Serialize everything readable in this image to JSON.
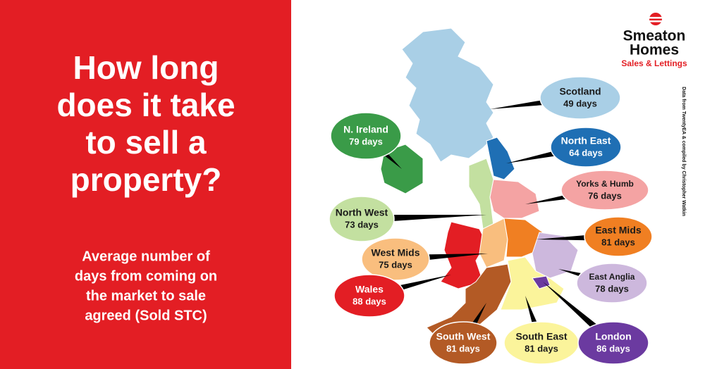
{
  "title_lines": [
    "How long",
    "does it take",
    "to sell a",
    "property?"
  ],
  "subtitle_lines": [
    "Average number of",
    "days from coming on",
    "the market to sale",
    "agreed (Sold STC)"
  ],
  "logo": {
    "name_lines": [
      "Smeaton",
      "Homes"
    ],
    "tagline": "Sales & Lettings"
  },
  "source": "Data from TwentyEA & compiled by Christopher Watkin",
  "regions": [
    {
      "name": "Scotland",
      "days": "49 days",
      "color": "#a9cfe6",
      "text_color": "#1a1a1a"
    },
    {
      "name": "N. Ireland",
      "days": "79 days",
      "color": "#3a9b48",
      "text_color": "#ffffff"
    },
    {
      "name": "North East",
      "days": "64 days",
      "color": "#1f6fb4",
      "text_color": "#ffffff"
    },
    {
      "name": "Yorks & Humb",
      "days": "76 days",
      "color": "#f4a3a3",
      "text_color": "#1a1a1a"
    },
    {
      "name": "North West",
      "days": "73 days",
      "color": "#c3e0a0",
      "text_color": "#1a1a1a"
    },
    {
      "name": "East Mids",
      "days": "81 days",
      "color": "#f07f22",
      "text_color": "#1a1a1a"
    },
    {
      "name": "West Mids",
      "days": "75 days",
      "color": "#f9be7e",
      "text_color": "#1a1a1a"
    },
    {
      "name": "East Anglia",
      "days": "78 days",
      "color": "#cdb8dd",
      "text_color": "#1a1a1a"
    },
    {
      "name": "Wales",
      "days": "88 days",
      "color": "#e31e24",
      "text_color": "#ffffff"
    },
    {
      "name": "South West",
      "days": "81 days",
      "color": "#b35a25",
      "text_color": "#ffffff"
    },
    {
      "name": "South East",
      "days": "81 days",
      "color": "#fbf49b",
      "text_color": "#1a1a1a"
    },
    {
      "name": "London",
      "days": "86 days",
      "color": "#6b3aa0",
      "text_color": "#ffffff"
    }
  ]
}
